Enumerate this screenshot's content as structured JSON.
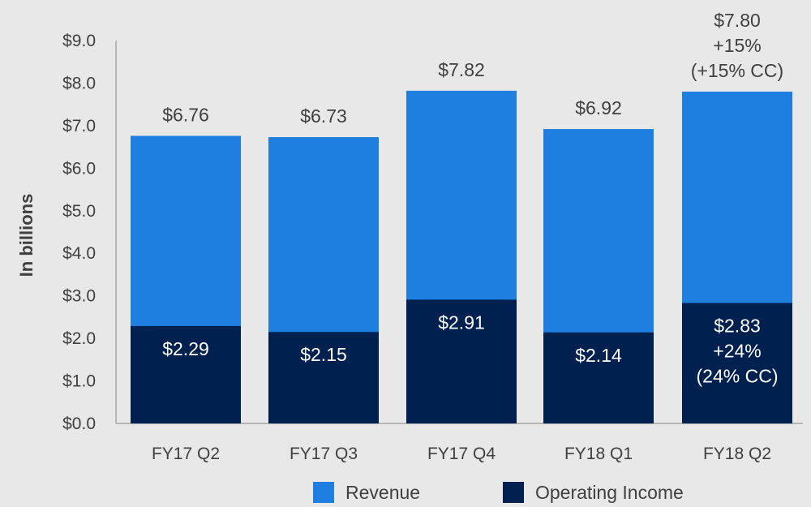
{
  "chart_data": {
    "type": "bar",
    "stacked": false,
    "overlaid": true,
    "ylabel": "In billions",
    "ylim": [
      0,
      9
    ],
    "y_ticks": [
      "$0.0",
      "$1.0",
      "$2.0",
      "$3.0",
      "$4.0",
      "$5.0",
      "$6.0",
      "$7.0",
      "$8.0",
      "$9.0"
    ],
    "categories": [
      "FY17 Q2",
      "FY17 Q3",
      "FY17 Q4",
      "FY18 Q1",
      "FY18 Q2"
    ],
    "series": [
      {
        "name": "Revenue",
        "color": "#1f7fe0",
        "values": [
          6.76,
          6.73,
          7.82,
          6.92,
          7.8
        ],
        "labels": [
          [
            "$6.76"
          ],
          [
            "$6.73"
          ],
          [
            "$7.82"
          ],
          [
            "$6.92"
          ],
          [
            "$7.80",
            "+15%",
            "(+15% CC)"
          ]
        ]
      },
      {
        "name": "Operating Income",
        "color": "#002050",
        "values": [
          2.29,
          2.15,
          2.91,
          2.14,
          2.83
        ],
        "labels": [
          [
            "$2.29"
          ],
          [
            "$2.15"
          ],
          [
            "$2.91"
          ],
          [
            "$2.14"
          ],
          [
            "$2.83",
            "+24%",
            "(24% CC)"
          ]
        ]
      }
    ],
    "grid": false,
    "legend": "bottom"
  }
}
